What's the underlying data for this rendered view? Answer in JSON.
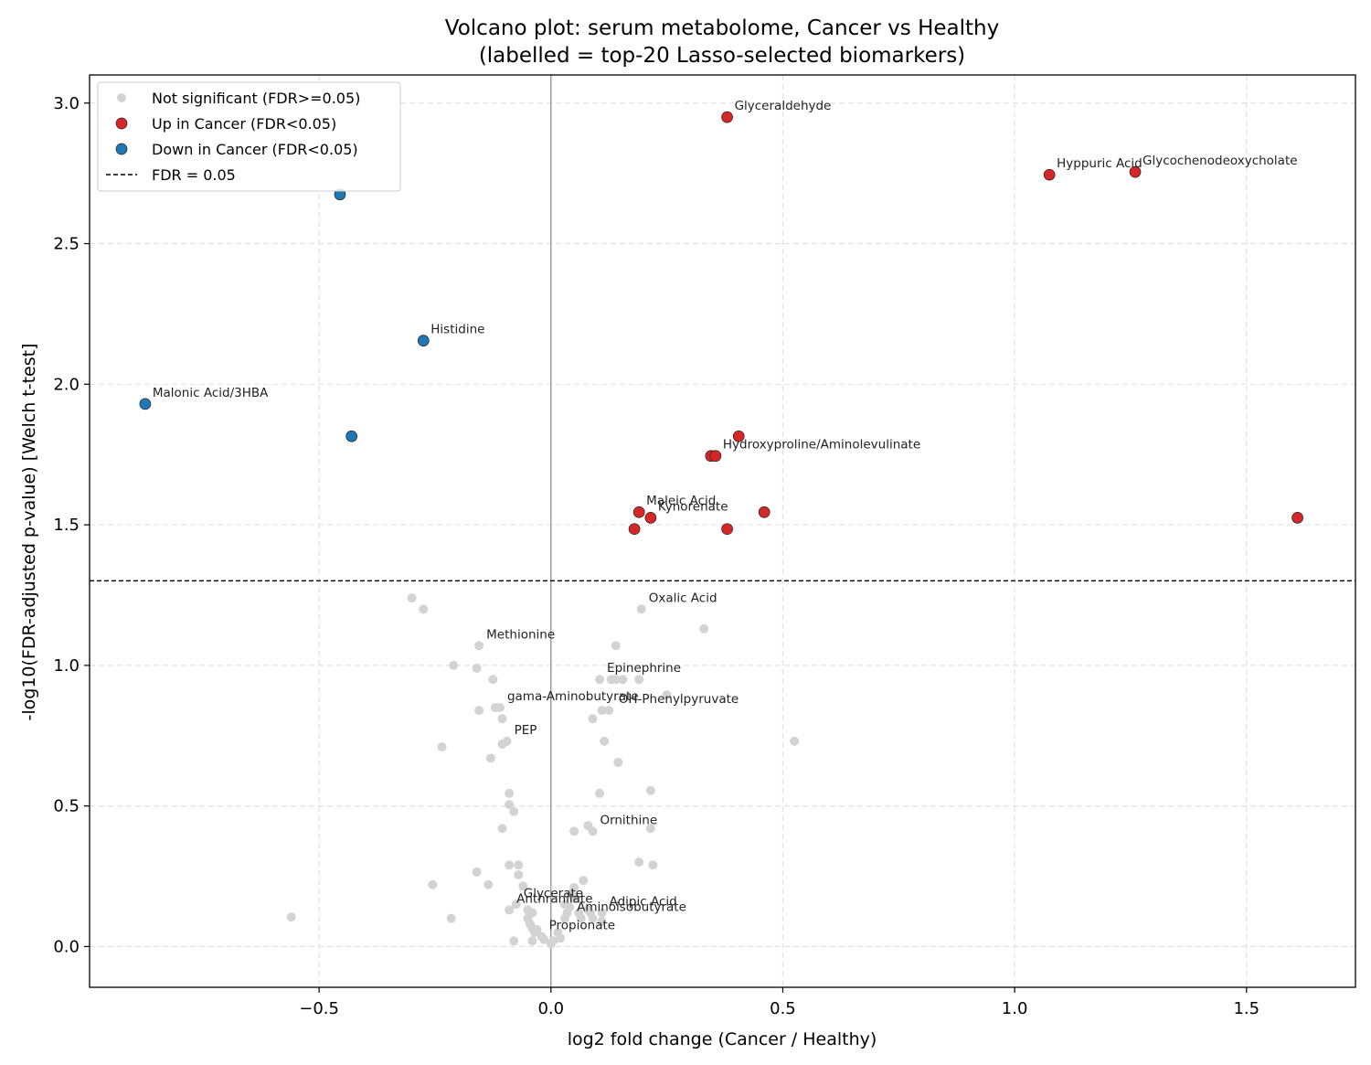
{
  "chart_data": {
    "type": "scatter",
    "title": "Volcano plot: serum metabolome, Cancer vs Healthy",
    "subtitle": "(labelled = top-20 Lasso-selected biomarkers)",
    "xlabel": "log2 fold change (Cancer / Healthy)",
    "ylabel": "-log10(FDR-adjusted p-value)  [Welch t-test]",
    "xlim": [
      -0.995,
      1.735
    ],
    "ylim": [
      -0.145,
      3.1
    ],
    "xticks": [
      -0.5,
      0.0,
      0.5,
      1.0,
      1.5
    ],
    "xtick_labels": [
      "−0.5",
      "0.0",
      "0.5",
      "1.0",
      "1.5"
    ],
    "yticks": [
      0.0,
      0.5,
      1.0,
      1.5,
      2.0,
      2.5,
      3.0
    ],
    "ytick_labels": [
      "0.0",
      "0.5",
      "1.0",
      "1.5",
      "2.0",
      "2.5",
      "3.0"
    ],
    "grid": true,
    "legend_position": "top-left",
    "threshold": {
      "y": 1.301,
      "label": "FDR = 0.05"
    },
    "zero_line_x": 0.0,
    "series": [
      {
        "name": "Not significant (FDR>=0.05)",
        "color": "#d3d3d3",
        "points": [
          [
            -0.3,
            1.24
          ],
          [
            -0.275,
            1.2
          ],
          [
            -0.155,
            1.07
          ],
          [
            -0.21,
            1.0
          ],
          [
            -0.16,
            0.99
          ],
          [
            -0.125,
            0.95
          ],
          [
            -0.155,
            0.84
          ],
          [
            -0.12,
            0.85
          ],
          [
            -0.11,
            0.85
          ],
          [
            -0.105,
            0.81
          ],
          [
            -0.235,
            0.71
          ],
          [
            -0.105,
            0.72
          ],
          [
            -0.095,
            0.73
          ],
          [
            -0.13,
            0.67
          ],
          [
            -0.09,
            0.545
          ],
          [
            -0.09,
            0.505
          ],
          [
            -0.08,
            0.48
          ],
          [
            -0.105,
            0.42
          ],
          [
            -0.09,
            0.29
          ],
          [
            -0.07,
            0.29
          ],
          [
            -0.16,
            0.265
          ],
          [
            -0.07,
            0.255
          ],
          [
            -0.255,
            0.22
          ],
          [
            -0.135,
            0.22
          ],
          [
            -0.06,
            0.215
          ],
          [
            -0.56,
            0.105
          ],
          [
            -0.215,
            0.1
          ],
          [
            -0.09,
            0.13
          ],
          [
            -0.075,
            0.15
          ],
          [
            -0.05,
            0.13
          ],
          [
            -0.04,
            0.12
          ],
          [
            -0.05,
            0.1
          ],
          [
            -0.045,
            0.08
          ],
          [
            -0.04,
            0.065
          ],
          [
            -0.035,
            0.05
          ],
          [
            -0.03,
            0.06
          ],
          [
            -0.02,
            0.035
          ],
          [
            -0.015,
            0.025
          ],
          [
            -0.04,
            0.02
          ],
          [
            -0.08,
            0.02
          ],
          [
            0.0,
            0.01
          ],
          [
            0.005,
            0.02
          ],
          [
            0.02,
            0.03
          ],
          [
            0.015,
            0.05
          ],
          [
            0.03,
            0.1
          ],
          [
            0.035,
            0.12
          ],
          [
            0.04,
            0.14
          ],
          [
            0.05,
            0.17
          ],
          [
            0.045,
            0.19
          ],
          [
            0.05,
            0.21
          ],
          [
            0.07,
            0.235
          ],
          [
            0.03,
            0.15
          ],
          [
            0.06,
            0.12
          ],
          [
            0.065,
            0.1
          ],
          [
            0.08,
            0.13
          ],
          [
            0.085,
            0.12
          ],
          [
            0.09,
            0.1
          ],
          [
            0.11,
            0.12
          ],
          [
            0.11,
            0.09
          ],
          [
            0.05,
            0.41
          ],
          [
            0.08,
            0.43
          ],
          [
            0.09,
            0.41
          ],
          [
            0.105,
            0.545
          ],
          [
            0.195,
            1.2
          ],
          [
            0.33,
            1.13
          ],
          [
            0.14,
            1.07
          ],
          [
            0.105,
            0.95
          ],
          [
            0.13,
            0.95
          ],
          [
            0.14,
            0.95
          ],
          [
            0.155,
            0.95
          ],
          [
            0.19,
            0.95
          ],
          [
            0.25,
            0.895
          ],
          [
            0.11,
            0.84
          ],
          [
            0.125,
            0.84
          ],
          [
            0.09,
            0.81
          ],
          [
            0.115,
            0.73
          ],
          [
            0.145,
            0.655
          ],
          [
            0.525,
            0.73
          ],
          [
            0.215,
            0.555
          ],
          [
            0.215,
            0.42
          ],
          [
            0.19,
            0.3
          ],
          [
            0.22,
            0.29
          ]
        ]
      },
      {
        "name": "Up in Cancer (FDR<0.05)",
        "color": "#d62728",
        "points": [
          [
            0.38,
            2.95
          ],
          [
            1.075,
            2.745
          ],
          [
            1.26,
            2.755
          ],
          [
            0.405,
            1.815
          ],
          [
            0.345,
            1.745
          ],
          [
            0.355,
            1.745
          ],
          [
            0.19,
            1.545
          ],
          [
            0.215,
            1.525
          ],
          [
            0.18,
            1.485
          ],
          [
            0.38,
            1.485
          ],
          [
            0.46,
            1.545
          ],
          [
            1.61,
            1.525
          ]
        ]
      },
      {
        "name": "Down in Cancer (FDR<0.05)",
        "color": "#1f77b4",
        "points": [
          [
            -0.455,
            2.675
          ],
          [
            -0.275,
            2.155
          ],
          [
            -0.875,
            1.93
          ],
          [
            -0.43,
            1.815
          ]
        ]
      }
    ],
    "annotations": [
      {
        "text": "Glyceraldehyde",
        "x": 0.38,
        "y": 2.95
      },
      {
        "text": "Hyppuric Acid",
        "x": 1.075,
        "y": 2.745
      },
      {
        "text": "Glycochenodeoxycholate",
        "x": 1.26,
        "y": 2.755
      },
      {
        "text": "Histidine",
        "x": -0.275,
        "y": 2.155
      },
      {
        "text": "Malonic Acid/3HBA",
        "x": -0.875,
        "y": 1.93
      },
      {
        "text": "Hydroxyproline/Aminolevulinate",
        "x": 0.355,
        "y": 1.745
      },
      {
        "text": "Maleic Acid",
        "x": 0.19,
        "y": 1.545
      },
      {
        "text": "Kynorenate",
        "x": 0.215,
        "y": 1.525
      },
      {
        "text": "Oxalic Acid",
        "x": 0.195,
        "y": 1.2
      },
      {
        "text": "Methionine",
        "x": -0.155,
        "y": 1.07
      },
      {
        "text": "Epinephrine",
        "x": 0.105,
        "y": 0.95
      },
      {
        "text": "gama-Aminobutyrate",
        "x": -0.11,
        "y": 0.85
      },
      {
        "text": "OH-Phenylpyruvate",
        "x": 0.13,
        "y": 0.84
      },
      {
        "text": "PEP",
        "x": -0.095,
        "y": 0.73
      },
      {
        "text": "Ornithine",
        "x": 0.09,
        "y": 0.41
      },
      {
        "text": "Glycerate",
        "x": -0.075,
        "y": 0.15
      },
      {
        "text": "Anthranilate",
        "x": -0.09,
        "y": 0.13
      },
      {
        "text": "Adipic Acid",
        "x": 0.11,
        "y": 0.12
      },
      {
        "text": "Aminoisobutyrate",
        "x": 0.04,
        "y": 0.1
      },
      {
        "text": "Propionate",
        "x": -0.02,
        "y": 0.035
      }
    ]
  }
}
